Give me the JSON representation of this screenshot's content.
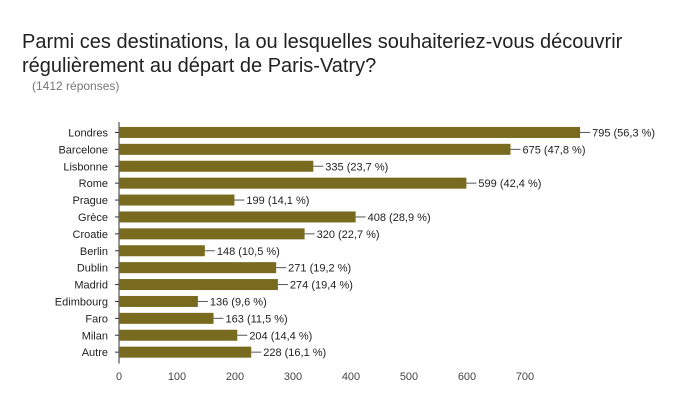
{
  "chart_data": {
    "type": "bar",
    "orientation": "horizontal",
    "title": "Parmi ces destinations, la ou lesquelles souhaiteriez-vous découvrir régulièrement au départ de Paris-Vatry?",
    "subtitle": "(1412 réponses)",
    "categories": [
      "Londres",
      "Barcelone",
      "Lisbonne",
      "Rome",
      "Prague",
      "Grèce",
      "Croatie",
      "Berlin",
      "Dublin",
      "Madrid",
      "Edimbourg",
      "Faro",
      "Milan",
      "Autre"
    ],
    "values": [
      795,
      675,
      335,
      599,
      199,
      408,
      320,
      148,
      271,
      274,
      136,
      163,
      204,
      228
    ],
    "value_labels": [
      "795 (56,3 %)",
      "675 (47,8 %)",
      "335 (23,7 %)",
      "599 (42,4 %)",
      "199 (14,1 %)",
      "408 (28,9 %)",
      "320 (22,7 %)",
      "148 (10,5 %)",
      "271 (19,2 %)",
      "274 (19,4 %)",
      "136 (9,6 %)",
      "163 (11,5 %)",
      "204 (14,4 %)",
      "228 (16,1 %)"
    ],
    "xlim": [
      0,
      800
    ],
    "xticks": [
      0,
      100,
      200,
      300,
      400,
      500,
      600,
      700
    ],
    "bar_color": "#786a1f",
    "grid": false
  }
}
